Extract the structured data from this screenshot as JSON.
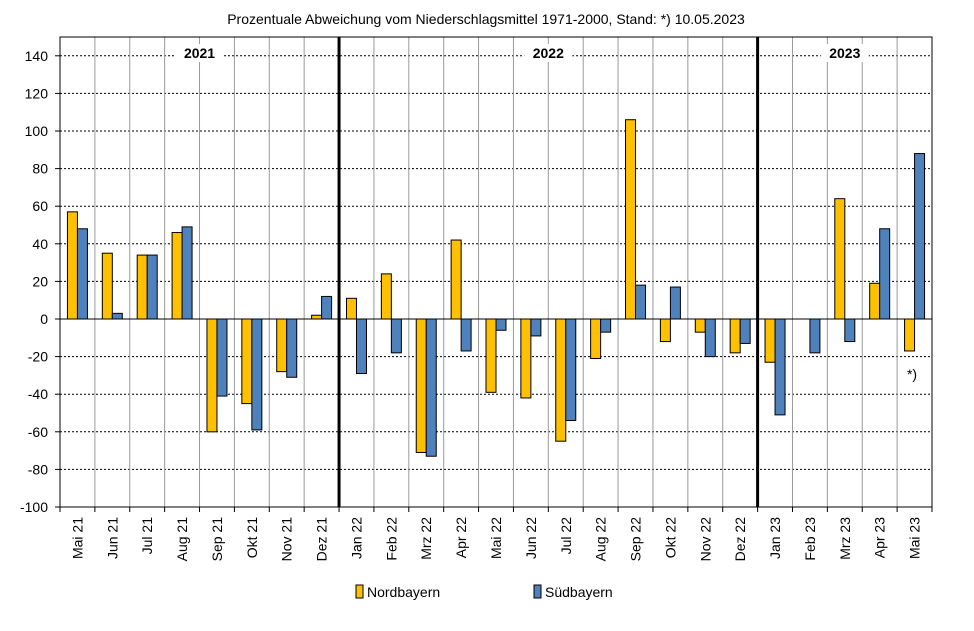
{
  "chart_data": {
    "type": "bar",
    "title": "Prozentuale Abweichung vom Niederschlagsmittel 1971-2000,  Stand: *) 10.05.2023",
    "categories": [
      "Mai 21",
      "Jun 21",
      "Jul 21",
      "Aug 21",
      "Sep 21",
      "Okt 21",
      "Nov 21",
      "Dez 21",
      "Jan 22",
      "Feb 22",
      "Mrz 22",
      "Apr 22",
      "Mai 22",
      "Jun 22",
      "Jul 22",
      "Aug 22",
      "Sep 22",
      "Okt 22",
      "Nov 22",
      "Dez 22",
      "Jan 23",
      "Feb 23",
      "Mrz 23",
      "Apr 23",
      "Mai 23"
    ],
    "series": [
      {
        "name": "Nordbayern",
        "color": "#FFC000",
        "values": [
          57,
          35,
          34,
          46,
          -60,
          -45,
          -28,
          2,
          11,
          24,
          -71,
          42,
          -39,
          -42,
          -65,
          -21,
          106,
          -12,
          -7,
          -18,
          -23,
          0,
          64,
          19,
          -17
        ]
      },
      {
        "name": "Südbayern",
        "color": "#4F81BD",
        "values": [
          48,
          3,
          34,
          49,
          -41,
          -59,
          -31,
          12,
          -29,
          -18,
          -73,
          -17,
          -6,
          -9,
          -54,
          -7,
          18,
          17,
          -20,
          -13,
          -51,
          -18,
          -12,
          48,
          88
        ]
      }
    ],
    "ylim": [
      -100,
      150
    ],
    "yticks": [
      140,
      120,
      100,
      80,
      60,
      40,
      20,
      0,
      -20,
      -40,
      -60,
      -80,
      -100
    ],
    "grid": true,
    "years": [
      {
        "label": "2021",
        "start": 0,
        "end": 8
      },
      {
        "label": "2022",
        "start": 8,
        "end": 20
      },
      {
        "label": "2023",
        "start": 20,
        "end": 25
      }
    ],
    "footnote": "*)",
    "legend_position": "bottom"
  }
}
